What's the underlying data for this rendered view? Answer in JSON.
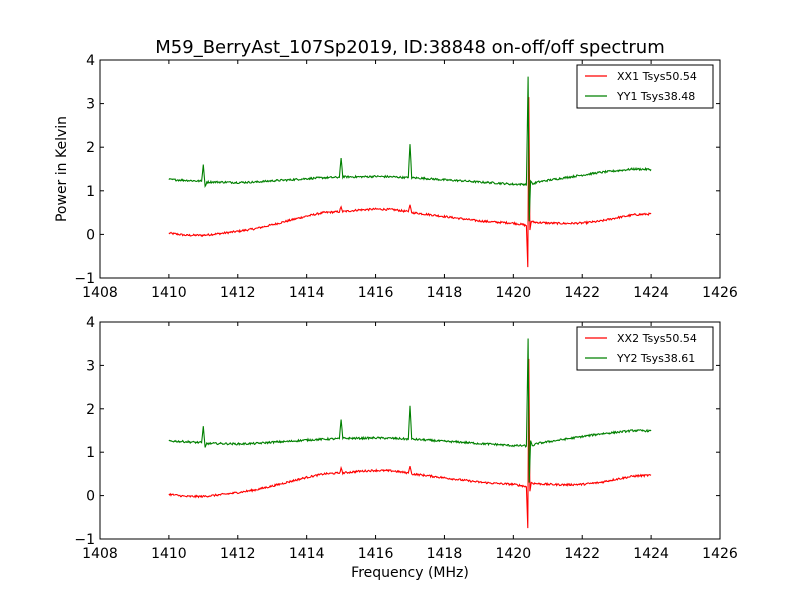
{
  "title": "M59_BerryAst_107Sp2019, ID:38848 on-off/off spectrum",
  "ylabel": "Power in Kelvin",
  "xlabel": "Frequency (MHz)",
  "chart_data": [
    {
      "type": "line",
      "xlim": [
        1408,
        1426
      ],
      "ylim": [
        -1,
        4
      ],
      "xticks": [
        1408,
        1410,
        1412,
        1414,
        1416,
        1418,
        1420,
        1422,
        1424,
        1426
      ],
      "yticks": [
        -1,
        0,
        1,
        2,
        3,
        4
      ],
      "legend_position": "top-right",
      "series": [
        {
          "name": "XX1 Tsys50.54",
          "color": "#ff0000",
          "x": [
            1410.0,
            1410.5,
            1411.0,
            1411.5,
            1412.0,
            1412.5,
            1413.0,
            1413.5,
            1414.0,
            1414.5,
            1414.95,
            1415.0,
            1415.05,
            1415.5,
            1416.0,
            1416.5,
            1416.95,
            1417.0,
            1417.05,
            1417.5,
            1418.0,
            1418.5,
            1419.0,
            1419.5,
            1420.0,
            1420.3,
            1420.38,
            1420.42,
            1420.45,
            1420.48,
            1420.52,
            1420.6,
            1421.0,
            1421.5,
            1422.0,
            1422.5,
            1423.0,
            1423.5,
            1424.0
          ],
          "y": [
            0.03,
            -0.02,
            -0.02,
            0.02,
            0.07,
            0.13,
            0.22,
            0.32,
            0.42,
            0.5,
            0.52,
            0.62,
            0.52,
            0.56,
            0.58,
            0.57,
            0.52,
            0.68,
            0.5,
            0.46,
            0.41,
            0.36,
            0.31,
            0.28,
            0.26,
            0.22,
            0.2,
            -0.75,
            3.15,
            0.1,
            0.3,
            0.28,
            0.26,
            0.25,
            0.26,
            0.3,
            0.38,
            0.45,
            0.47
          ]
        },
        {
          "name": "YY1 Tsys38.48",
          "color": "#008000",
          "x": [
            1410.0,
            1410.5,
            1410.95,
            1411.0,
            1411.05,
            1411.1,
            1411.5,
            1412.0,
            1412.5,
            1413.0,
            1413.5,
            1414.0,
            1414.5,
            1414.95,
            1415.0,
            1415.05,
            1415.5,
            1416.0,
            1416.5,
            1416.95,
            1417.0,
            1417.05,
            1417.5,
            1418.0,
            1418.5,
            1419.0,
            1419.5,
            1420.0,
            1420.3,
            1420.38,
            1420.43,
            1420.46,
            1420.5,
            1420.55,
            1420.7,
            1421.0,
            1421.5,
            1422.0,
            1422.5,
            1423.0,
            1423.5,
            1424.0
          ],
          "y": [
            1.26,
            1.24,
            1.22,
            1.6,
            1.1,
            1.2,
            1.2,
            1.19,
            1.2,
            1.23,
            1.25,
            1.28,
            1.3,
            1.31,
            1.75,
            1.32,
            1.32,
            1.33,
            1.32,
            1.3,
            2.07,
            1.3,
            1.28,
            1.25,
            1.23,
            1.2,
            1.18,
            1.15,
            1.15,
            1.14,
            3.62,
            0.3,
            1.25,
            1.15,
            1.2,
            1.24,
            1.3,
            1.36,
            1.42,
            1.46,
            1.5,
            1.49
          ]
        }
      ]
    },
    {
      "type": "line",
      "xlim": [
        1408,
        1426
      ],
      "ylim": [
        -1,
        4
      ],
      "xticks": [
        1408,
        1410,
        1412,
        1414,
        1416,
        1418,
        1420,
        1422,
        1424,
        1426
      ],
      "yticks": [
        -1,
        0,
        1,
        2,
        3,
        4
      ],
      "legend_position": "top-right",
      "series": [
        {
          "name": "XX2 Tsys50.54",
          "color": "#ff0000",
          "x": [
            1410.0,
            1410.5,
            1411.0,
            1411.5,
            1412.0,
            1412.5,
            1413.0,
            1413.5,
            1414.0,
            1414.5,
            1414.95,
            1415.0,
            1415.05,
            1415.5,
            1416.0,
            1416.5,
            1416.95,
            1417.0,
            1417.05,
            1417.5,
            1418.0,
            1418.5,
            1419.0,
            1419.5,
            1420.0,
            1420.3,
            1420.38,
            1420.42,
            1420.45,
            1420.48,
            1420.52,
            1420.6,
            1421.0,
            1421.5,
            1422.0,
            1422.5,
            1423.0,
            1423.5,
            1424.0
          ],
          "y": [
            0.03,
            -0.02,
            -0.02,
            0.02,
            0.07,
            0.13,
            0.22,
            0.32,
            0.42,
            0.5,
            0.52,
            0.62,
            0.52,
            0.56,
            0.58,
            0.57,
            0.52,
            0.68,
            0.5,
            0.46,
            0.41,
            0.36,
            0.31,
            0.28,
            0.26,
            0.22,
            0.2,
            -0.75,
            3.15,
            0.1,
            0.3,
            0.28,
            0.26,
            0.25,
            0.26,
            0.3,
            0.38,
            0.45,
            0.47
          ]
        },
        {
          "name": "YY2 Tsys38.61",
          "color": "#008000",
          "x": [
            1410.0,
            1410.5,
            1410.95,
            1411.0,
            1411.05,
            1411.1,
            1411.5,
            1412.0,
            1412.5,
            1413.0,
            1413.5,
            1414.0,
            1414.5,
            1414.95,
            1415.0,
            1415.05,
            1415.5,
            1416.0,
            1416.5,
            1416.95,
            1417.0,
            1417.05,
            1417.5,
            1418.0,
            1418.5,
            1419.0,
            1419.5,
            1420.0,
            1420.3,
            1420.38,
            1420.43,
            1420.46,
            1420.5,
            1420.55,
            1420.7,
            1421.0,
            1421.5,
            1422.0,
            1422.5,
            1423.0,
            1423.5,
            1424.0
          ],
          "y": [
            1.26,
            1.24,
            1.22,
            1.6,
            1.1,
            1.2,
            1.2,
            1.19,
            1.2,
            1.23,
            1.25,
            1.28,
            1.3,
            1.31,
            1.75,
            1.32,
            1.32,
            1.33,
            1.32,
            1.3,
            2.07,
            1.3,
            1.28,
            1.25,
            1.23,
            1.2,
            1.18,
            1.15,
            1.15,
            1.14,
            3.62,
            0.3,
            1.25,
            1.15,
            1.2,
            1.24,
            1.3,
            1.36,
            1.42,
            1.46,
            1.5,
            1.49
          ]
        }
      ]
    }
  ]
}
